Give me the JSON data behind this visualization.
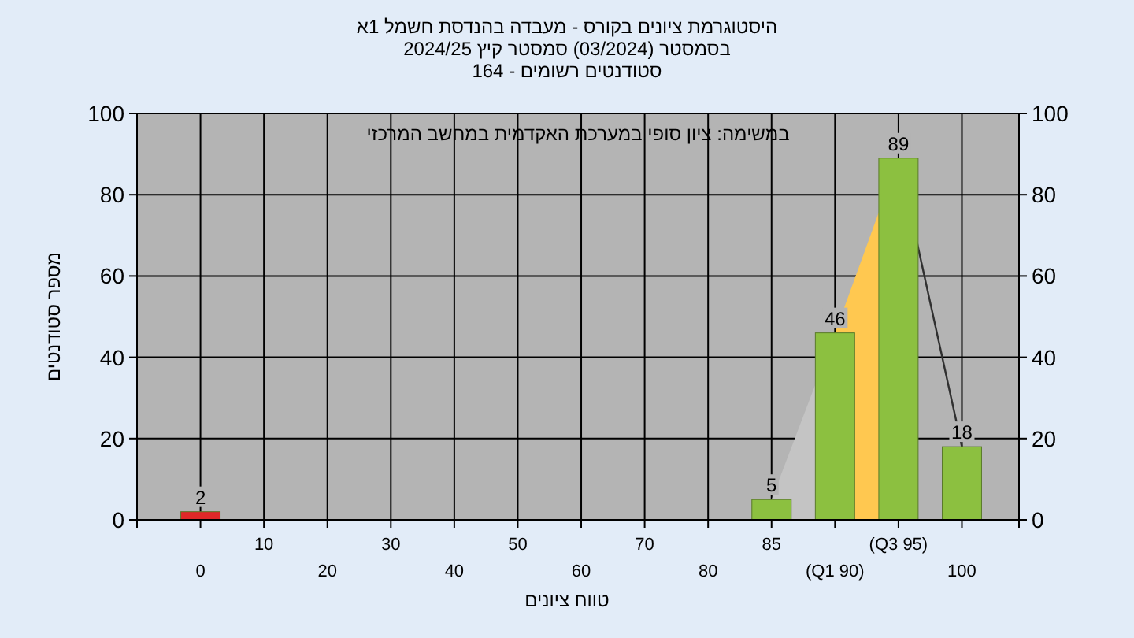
{
  "chart_data": {
    "type": "bar",
    "title": "היסטוגרמת ציונים בקורס - מעבדה בהנדסת חשמל 1א",
    "subtitle": "בסמסטר (03/2024) סמסטר קיץ 2024/25",
    "xlabel": "טווח ציונים",
    "ylabel": "מספר סטודנטים",
    "annotations": [
      "סטודנטים רשומים - 164",
      "במשימה: ציון סופי במערכת האקדמית במחשב המרכזי"
    ],
    "categories": [
      "0",
      "10",
      "20",
      "30",
      "40",
      "50",
      "60",
      "70",
      "80",
      "85",
      "(Q1 90)",
      "(Q3 95)",
      "100"
    ],
    "series": [
      {
        "type": "area",
        "color": "#c4c4c4",
        "values": [
          null,
          null,
          null,
          null,
          null,
          null,
          null,
          null,
          null,
          5,
          46,
          null,
          null
        ]
      },
      {
        "type": "area",
        "color": "#ffc850",
        "values": [
          null,
          null,
          null,
          null,
          null,
          null,
          null,
          null,
          null,
          null,
          46,
          89,
          null
        ]
      },
      {
        "type": "line",
        "color": "#303030",
        "values": [
          null,
          null,
          null,
          null,
          null,
          null,
          null,
          null,
          null,
          null,
          null,
          89,
          18
        ]
      },
      {
        "colors": [
          "#e02828",
          "#8cc040",
          "#8cc040",
          "#8cc040",
          "#8cc040",
          "#8cc040",
          "#8cc040",
          "#8cc040",
          "#8cc040",
          "#8cc040",
          "#8cc040",
          "#8cc040",
          "#8cc040"
        ],
        "values": [
          2,
          0,
          0,
          0,
          0,
          0,
          0,
          0,
          0,
          5,
          46,
          89,
          18
        ],
        "value_labels": [
          "2",
          null,
          null,
          null,
          null,
          null,
          null,
          null,
          null,
          "5",
          "46",
          "89",
          "18"
        ]
      }
    ],
    "ylim": [
      0,
      100
    ],
    "yticks": [
      0,
      20,
      40,
      60,
      80,
      100
    ],
    "y2lim": [
      0,
      100
    ],
    "y2ticks": [
      0,
      20,
      40,
      60,
      80,
      100
    ],
    "grid": true
  }
}
